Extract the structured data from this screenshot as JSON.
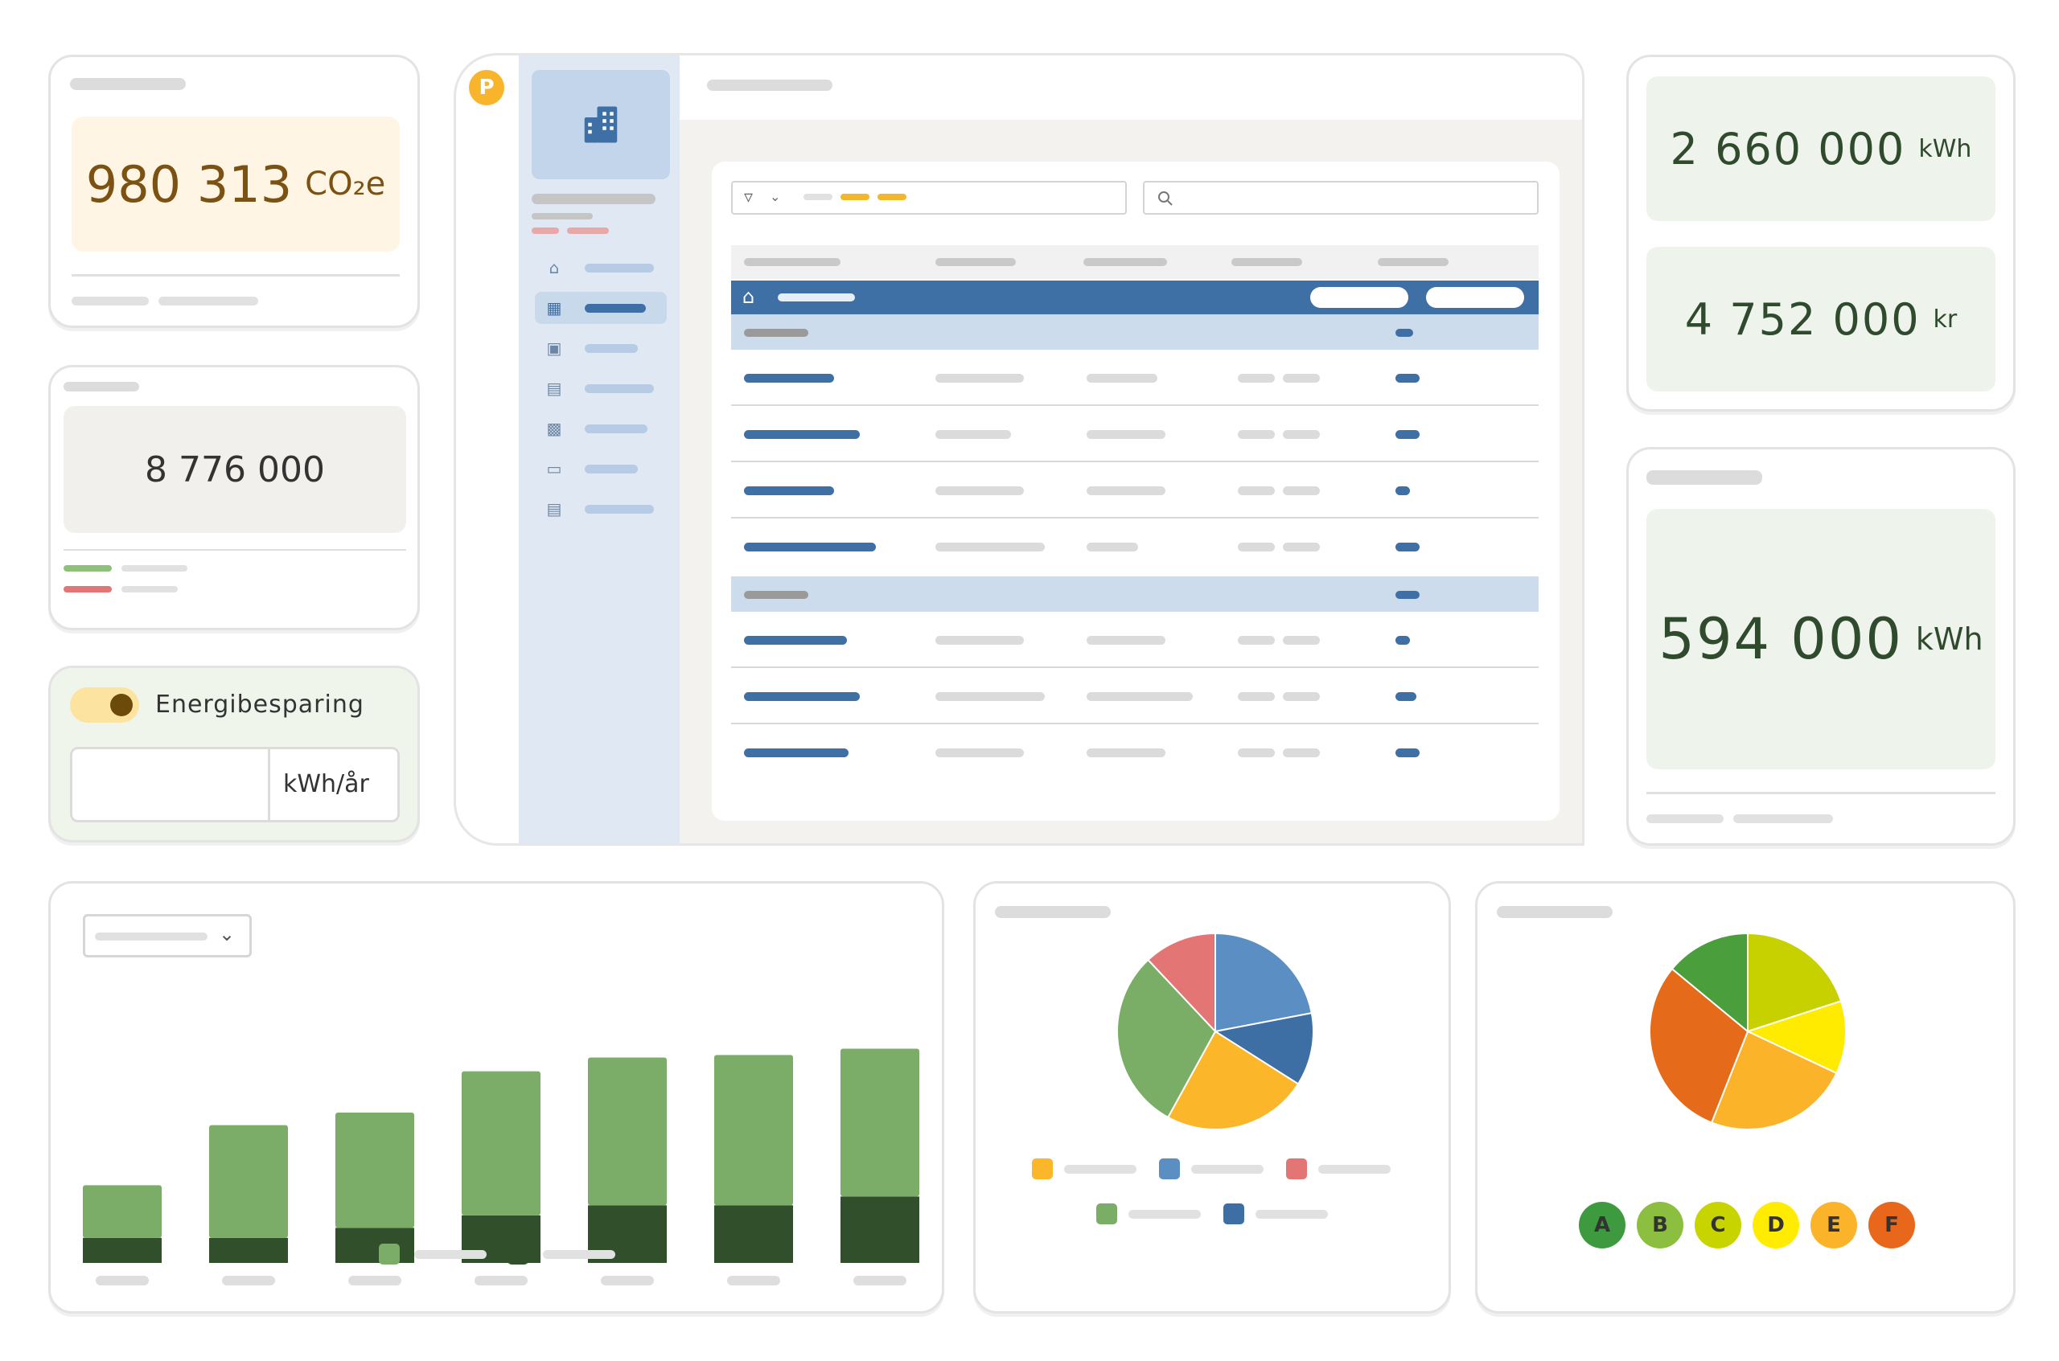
{
  "co2_card": {
    "value": "980 313",
    "unit": "CO₂e",
    "color": "#8a5a14",
    "bg": "#fff5e4"
  },
  "total_card": {
    "value": "8 776 000",
    "bg": "#f1f0ec"
  },
  "savings_card": {
    "toggle_label": "Energibesparing",
    "toggle_on": true,
    "input_value": "",
    "unit": "kWh/år"
  },
  "energy_card": {
    "value": "2 660 000",
    "unit": "kWh",
    "color": "#2f4a2c",
    "bg": "#eef3ec"
  },
  "cost_card": {
    "value": "4 752 000",
    "unit": "kr",
    "color": "#2f4a2c"
  },
  "annual_card": {
    "value": "594 000",
    "unit": "kWh",
    "color": "#2f4a2c"
  },
  "app": {
    "logo_icon": "p-logo-icon",
    "building_icon": "building-icon",
    "search_icon": "search-icon",
    "filter_icon": "filter-icon",
    "home_icon": "home-icon",
    "nav_icons": [
      "house-search-icon",
      "buildings-icon",
      "garage-icon",
      "clipboard-icon",
      "robot-icon",
      "document-icon",
      "briefcase-icon"
    ],
    "active_nav_index": 1
  },
  "chart_data": [
    {
      "type": "bar",
      "stacked": true,
      "categories": [
        "",
        "",
        "",
        "",
        "",
        "",
        ""
      ],
      "series": [
        {
          "values": [
            20,
            20,
            28,
            38,
            46,
            46,
            53
          ],
          "color": "#324f2c"
        },
        {
          "values": [
            42,
            90,
            92,
            115,
            118,
            120,
            118
          ],
          "color": "#7cad68"
        }
      ],
      "ylim": [
        0,
        172
      ],
      "legend": "bottom-center"
    },
    {
      "type": "pie",
      "values": [
        22,
        12,
        24,
        30,
        12
      ],
      "colors": [
        "#5b8ec2",
        "#3d6ea4",
        "#fbb62a",
        "#7aad66",
        "#e37575"
      ],
      "legend": "bottom"
    },
    {
      "type": "pie",
      "values": [
        20,
        12,
        24,
        30,
        14
      ],
      "colors": [
        "#c7d100",
        "#ffeb00",
        "#fbb42a",
        "#e56b1b",
        "#4a9e3c"
      ],
      "legend": "bottom"
    }
  ],
  "grades": [
    {
      "label": "A",
      "color": "#3e9a3e"
    },
    {
      "label": "B",
      "color": "#8cbf3f"
    },
    {
      "label": "C",
      "color": "#c8d400"
    },
    {
      "label": "D",
      "color": "#ffec00"
    },
    {
      "label": "E",
      "color": "#fbb42a"
    },
    {
      "label": "F",
      "color": "#e8671b"
    }
  ]
}
